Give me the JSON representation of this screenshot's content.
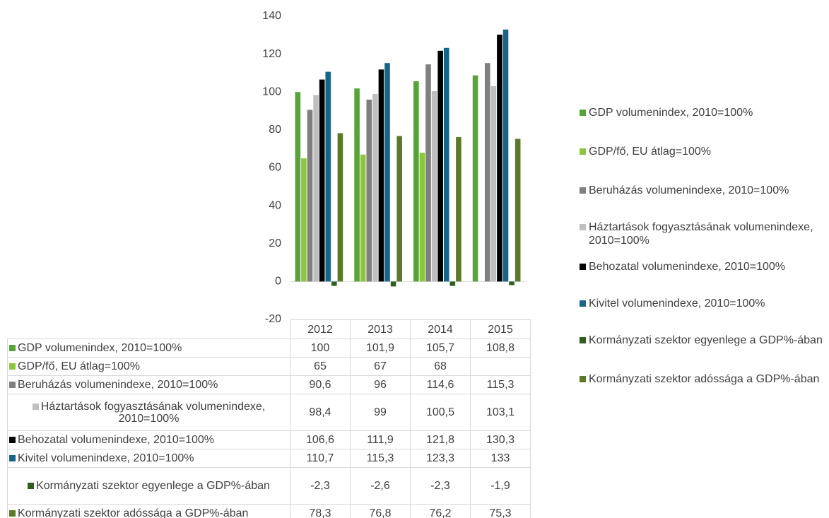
{
  "chart_data": {
    "type": "bar",
    "categories": [
      "2012",
      "2013",
      "2014",
      "2015"
    ],
    "series": [
      {
        "name": "GDP volumenindex, 2010=100%",
        "color": "#56a338",
        "values": [
          100,
          101.9,
          105.7,
          108.8
        ],
        "value_labels": [
          "100",
          "101,9",
          "105,7",
          "108,8"
        ]
      },
      {
        "name": "GDP/fő, EU átlag=100%",
        "color": "#8cc63f",
        "values": [
          65,
          67,
          68,
          null
        ],
        "value_labels": [
          "65",
          "67",
          "68",
          null
        ]
      },
      {
        "name": "Beruházás volumenindexe, 2010=100%",
        "color": "#7f7f7f",
        "values": [
          90.6,
          96,
          114.6,
          115.3
        ],
        "value_labels": [
          "90,6",
          "96",
          "114,6",
          "115,3"
        ]
      },
      {
        "name": "Háztartások fogyasztásának volumenindexe, 2010=100%",
        "color": "#bfbfbf",
        "values": [
          98.4,
          99,
          100.5,
          103.1
        ],
        "value_labels": [
          "98,4",
          "99",
          "100,5",
          "103,1"
        ]
      },
      {
        "name": "Behozatal volumenindexe, 2010=100%",
        "color": "#000000",
        "values": [
          106.6,
          111.9,
          121.8,
          130.3
        ],
        "value_labels": [
          "106,6",
          "111,9",
          "121,8",
          "130,3"
        ]
      },
      {
        "name": "Kivitel volumenindexe, 2010=100%",
        "color": "#14668a",
        "values": [
          110.7,
          115.3,
          123.3,
          133
        ],
        "value_labels": [
          "110,7",
          "115,3",
          "123,3",
          "133"
        ]
      },
      {
        "name": "Kormányzati szektor egyenlege a GDP%-ában",
        "color": "#2f5f1f",
        "values": [
          -2.3,
          -2.6,
          -2.3,
          -1.9
        ],
        "value_labels": [
          "-2,3",
          "-2,6",
          "-2,3",
          "-1,9"
        ]
      },
      {
        "name": "Kormányzati szektor adóssága a GDP%-ában",
        "color": "#5b7a28",
        "values": [
          78.3,
          76.8,
          76.2,
          75.3
        ],
        "value_labels": [
          "78,3",
          "76,8",
          "76,2",
          "75,3"
        ]
      }
    ],
    "ylim": [
      -20,
      140
    ],
    "yticks": [
      -20,
      0,
      20,
      40,
      60,
      80,
      100,
      120,
      140
    ],
    "grid": false,
    "legend": "right"
  }
}
